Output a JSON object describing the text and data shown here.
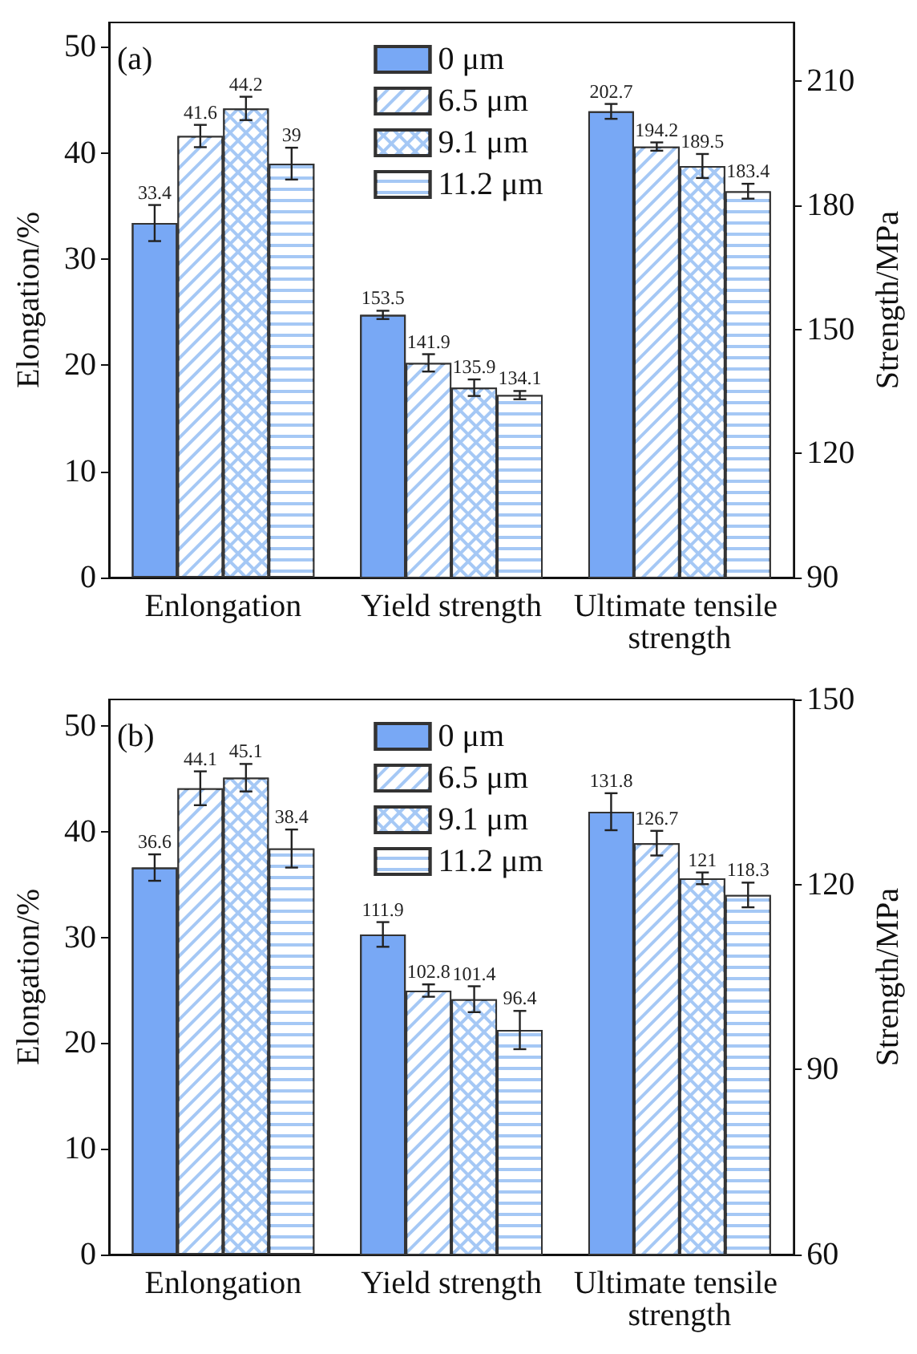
{
  "chart_data": [
    {
      "type": "bar",
      "title": "(a)",
      "ylabel": "Elongation/%",
      "y2label": "Strength/MPa",
      "categories": [
        "Enlongation",
        "Yield strength",
        "Ultimate tensile strength"
      ],
      "ylim": [
        0,
        52.3
      ],
      "yticks": [
        0,
        10,
        20,
        30,
        40,
        50
      ],
      "y2lim": [
        90,
        224.2
      ],
      "y2ticks": [
        90,
        120,
        150,
        180,
        210
      ],
      "legend": "top",
      "data_labels": true,
      "series": [
        {
          "name": "0 μm",
          "color": "#78a8f5",
          "values": [
            33.4,
            null,
            null
          ],
          "errors": [
            1.7,
            null,
            null
          ]
        },
        {
          "name": "6.5 μm",
          "color": "#a5c8f5",
          "values": [
            41.6,
            null,
            null
          ],
          "errors": [
            1.05,
            null,
            null
          ]
        },
        {
          "name": "9.1 μm",
          "color": "#a5c8f5",
          "values": [
            44.2,
            null,
            null
          ],
          "errors": [
            1.1,
            null,
            null
          ]
        },
        {
          "name": "11.2 μm",
          "color": "#a5c8f5",
          "values": [
            39,
            null,
            null
          ],
          "errors": [
            1.5,
            null,
            null
          ]
        },
        {
          "color": "#78a8f5",
          "axis": "y2",
          "values": [
            null,
            153.5,
            202.7
          ],
          "errors": [
            null,
            1.0,
            1.8
          ]
        },
        {
          "color": "#a5c8f5",
          "axis": "y2",
          "values": [
            null,
            141.9,
            194.2
          ],
          "errors": [
            null,
            2.1,
            1.0
          ]
        },
        {
          "color": "#a5c8f5",
          "axis": "y2",
          "values": [
            null,
            135.9,
            189.5
          ],
          "errors": [
            null,
            2.0,
            2.9
          ]
        },
        {
          "color": "#a5c8f5",
          "axis": "y2",
          "values": [
            null,
            134.1,
            183.4
          ],
          "errors": [
            null,
            1.0,
            1.8
          ]
        }
      ]
    },
    {
      "type": "bar",
      "title": "(b)",
      "ylabel": "Elongation/%",
      "y2label": "Strength/MPa",
      "categories": [
        "Enlongation",
        "Yield strength",
        "Ultimate tensile strength"
      ],
      "ylim": [
        0,
        52.5
      ],
      "yticks": [
        0,
        10,
        20,
        30,
        40,
        50
      ],
      "y2lim": [
        60,
        150
      ],
      "y2ticks": [
        60,
        90,
        120,
        150
      ],
      "legend": "top",
      "data_labels": true,
      "series": [
        {
          "name": "0 μm",
          "color": "#78a8f5",
          "values": [
            36.6,
            null,
            null
          ],
          "errors": [
            1.25,
            null,
            null
          ]
        },
        {
          "name": "6.5 μm",
          "color": "#a5c8f5",
          "values": [
            44.1,
            null,
            null
          ],
          "errors": [
            1.6,
            null,
            null
          ]
        },
        {
          "name": "9.1 μm",
          "color": "#a5c8f5",
          "values": [
            45.1,
            null,
            null
          ],
          "errors": [
            1.3,
            null,
            null
          ]
        },
        {
          "name": "11.2 μm",
          "color": "#a5c8f5",
          "values": [
            38.4,
            null,
            null
          ],
          "errors": [
            1.8,
            null,
            null
          ]
        },
        {
          "color": "#78a8f5",
          "axis": "y2",
          "values": [
            null,
            111.9,
            131.8
          ],
          "errors": [
            null,
            2.0,
            3.0
          ]
        },
        {
          "color": "#a5c8f5",
          "axis": "y2",
          "values": [
            null,
            102.8,
            126.7
          ],
          "errors": [
            null,
            1.0,
            2.0
          ]
        },
        {
          "color": "#a5c8f5",
          "axis": "y2",
          "values": [
            null,
            101.4,
            121
          ],
          "errors": [
            null,
            2.1,
            0.95
          ]
        },
        {
          "color": "#a5c8f5",
          "axis": "y2",
          "values": [
            null,
            96.4,
            118.3
          ],
          "errors": [
            null,
            3.1,
            2.0
          ]
        }
      ]
    }
  ]
}
